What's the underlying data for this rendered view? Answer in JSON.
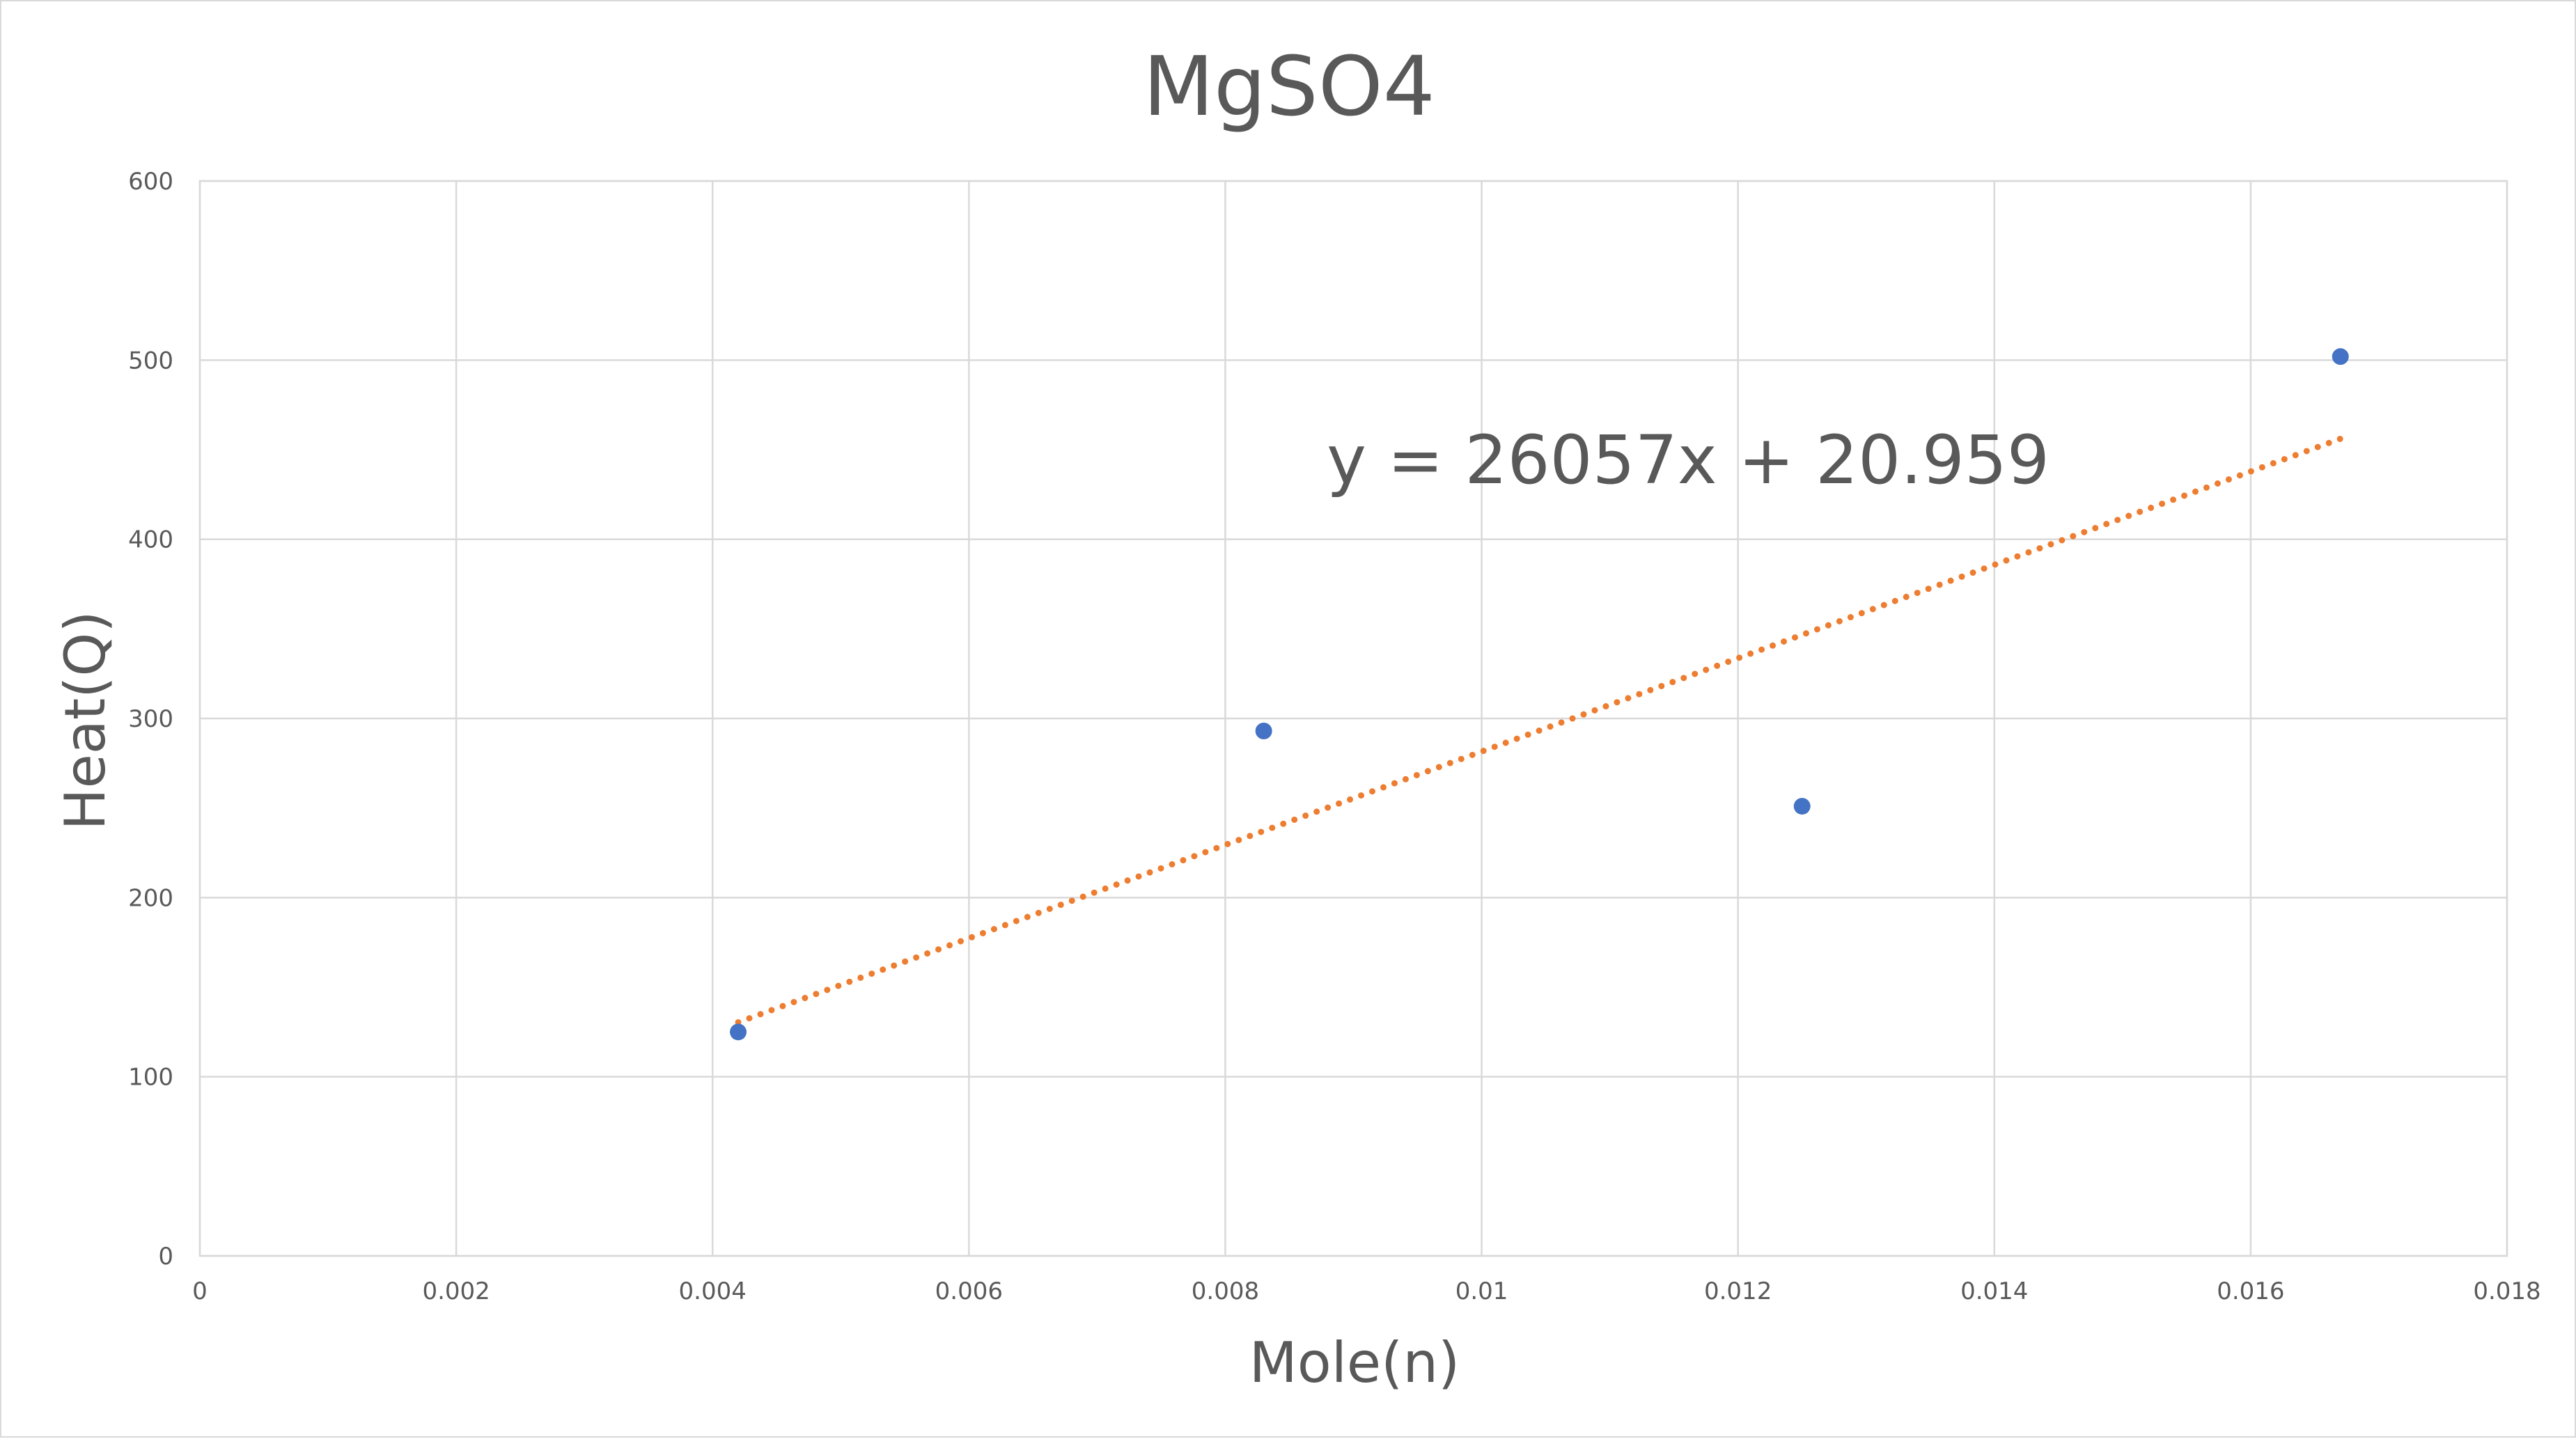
{
  "chart_data": {
    "type": "scatter",
    "title": "MgSO4",
    "xlabel": "Mole(n)",
    "ylabel": "Heat(Q)",
    "xlim": [
      0,
      0.018
    ],
    "ylim": [
      0,
      600
    ],
    "x_ticks": [
      "0",
      "0.002",
      "0.004",
      "0.006",
      "0.008",
      "0.01",
      "0.012",
      "0.014",
      "0.016",
      "0.018"
    ],
    "y_ticks": [
      "0",
      "100",
      "200",
      "300",
      "400",
      "500",
      "600"
    ],
    "grid": true,
    "legend": "none",
    "series": [
      {
        "x": [
          0.0042,
          0.0083,
          0.0125,
          0.0167
        ],
        "y": [
          125,
          293,
          251,
          502
        ],
        "color": "#4472c4"
      }
    ],
    "trendline": {
      "type": "linear",
      "slope": 26057,
      "intercept": 20.959,
      "x_range": [
        0.0042,
        0.0167
      ],
      "color": "#ed7d31",
      "style": "dotted"
    },
    "annotations": [
      {
        "text": "y = 26057x + 20.959",
        "x": 0.0089,
        "y": 445
      }
    ]
  }
}
